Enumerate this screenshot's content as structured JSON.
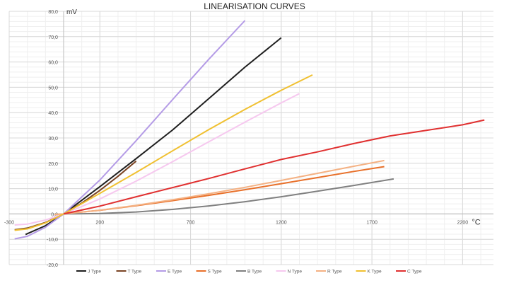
{
  "chart_data": {
    "type": "line",
    "title": "LINEARISATION CURVES",
    "xlabel": "°C",
    "ylabel": "mV",
    "xlim": [
      -300,
      2370
    ],
    "ylim": [
      -20,
      80
    ],
    "x_ticks": [
      "-300",
      "200",
      "700",
      "1200",
      "1700",
      "2200"
    ],
    "x_tick_values": [
      -300,
      200,
      700,
      1200,
      1700,
      2200
    ],
    "y_ticks": [
      "80,0",
      "70,0",
      "60,0",
      "50,0",
      "40,0",
      "30,0",
      "20,0",
      "10,0",
      "0,0",
      "-10,0",
      "-20,0"
    ],
    "y_tick_values": [
      80,
      70,
      60,
      50,
      40,
      30,
      20,
      10,
      0,
      -10,
      -20
    ],
    "grid": true,
    "legend_position": "bottom",
    "series": [
      {
        "name": "J Type",
        "color": "#1e1e1e",
        "points": [
          [
            -210,
            -8.1
          ],
          [
            -100,
            -4.63
          ],
          [
            0,
            0
          ],
          [
            200,
            10.78
          ],
          [
            400,
            21.85
          ],
          [
            600,
            33.1
          ],
          [
            800,
            45.5
          ],
          [
            1000,
            57.95
          ],
          [
            1200,
            69.55
          ]
        ]
      },
      {
        "name": "T Type",
        "color": "#7a4424",
        "points": [
          [
            -270,
            -6.26
          ],
          [
            -200,
            -5.6
          ],
          [
            -100,
            -3.38
          ],
          [
            0,
            0
          ],
          [
            100,
            4.28
          ],
          [
            200,
            9.29
          ],
          [
            300,
            14.86
          ],
          [
            400,
            20.87
          ]
        ]
      },
      {
        "name": "E Type",
        "color": "#b49be6",
        "points": [
          [
            -270,
            -9.84
          ],
          [
            -200,
            -8.83
          ],
          [
            -100,
            -5.24
          ],
          [
            0,
            0
          ],
          [
            200,
            13.42
          ],
          [
            400,
            28.95
          ],
          [
            600,
            45.09
          ],
          [
            800,
            61.02
          ],
          [
            1000,
            76.37
          ]
        ]
      },
      {
        "name": "S Type",
        "color": "#e8702a",
        "points": [
          [
            -50,
            -0.24
          ],
          [
            0,
            0
          ],
          [
            200,
            1.44
          ],
          [
            400,
            3.26
          ],
          [
            600,
            5.24
          ],
          [
            800,
            7.35
          ],
          [
            1000,
            9.59
          ],
          [
            1200,
            11.95
          ],
          [
            1400,
            14.37
          ],
          [
            1600,
            16.78
          ],
          [
            1768,
            18.69
          ]
        ]
      },
      {
        "name": "B Type",
        "color": "#808080",
        "points": [
          [
            0,
            0
          ],
          [
            200,
            0.18
          ],
          [
            400,
            0.79
          ],
          [
            600,
            1.79
          ],
          [
            800,
            3.15
          ],
          [
            1000,
            4.83
          ],
          [
            1200,
            6.79
          ],
          [
            1400,
            8.96
          ],
          [
            1600,
            11.26
          ],
          [
            1820,
            13.82
          ]
        ]
      },
      {
        "name": "N Type",
        "color": "#f6c8ef",
        "points": [
          [
            -270,
            -4.35
          ],
          [
            -200,
            -3.99
          ],
          [
            -100,
            -2.41
          ],
          [
            0,
            0
          ],
          [
            200,
            5.91
          ],
          [
            400,
            12.97
          ],
          [
            600,
            20.61
          ],
          [
            800,
            28.46
          ],
          [
            1000,
            36.26
          ],
          [
            1200,
            43.85
          ],
          [
            1300,
            47.51
          ]
        ]
      },
      {
        "name": "R Type",
        "color": "#f4b183",
        "points": [
          [
            -50,
            -0.23
          ],
          [
            0,
            0
          ],
          [
            200,
            1.47
          ],
          [
            400,
            3.41
          ],
          [
            600,
            5.58
          ],
          [
            800,
            7.95
          ],
          [
            1000,
            10.51
          ],
          [
            1200,
            13.23
          ],
          [
            1400,
            16.04
          ],
          [
            1600,
            18.84
          ],
          [
            1768,
            21.1
          ]
        ]
      },
      {
        "name": "K Type",
        "color": "#f0c030",
        "points": [
          [
            -270,
            -6.46
          ],
          [
            -200,
            -5.89
          ],
          [
            -100,
            -3.55
          ],
          [
            0,
            0
          ],
          [
            200,
            8.14
          ],
          [
            400,
            16.4
          ],
          [
            600,
            24.9
          ],
          [
            800,
            33.28
          ],
          [
            1000,
            41.28
          ],
          [
            1200,
            48.84
          ],
          [
            1372,
            54.89
          ]
        ]
      },
      {
        "name": "C Type",
        "color": "#e03030",
        "points": [
          [
            0,
            0
          ],
          [
            200,
            3.1
          ],
          [
            400,
            6.8
          ],
          [
            600,
            10.4
          ],
          [
            800,
            14.0
          ],
          [
            1000,
            17.8
          ],
          [
            1200,
            21.5
          ],
          [
            1400,
            24.5
          ],
          [
            1600,
            27.8
          ],
          [
            1800,
            30.8
          ],
          [
            2000,
            33.0
          ],
          [
            2200,
            35.2
          ],
          [
            2320,
            37.1
          ]
        ]
      }
    ]
  }
}
